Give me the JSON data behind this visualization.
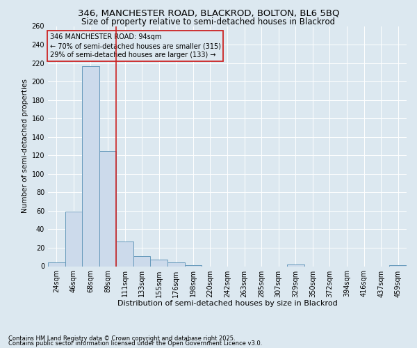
{
  "title1": "346, MANCHESTER ROAD, BLACKROD, BOLTON, BL6 5BQ",
  "title2": "Size of property relative to semi-detached houses in Blackrod",
  "xlabel": "Distribution of semi-detached houses by size in Blackrod",
  "ylabel": "Number of semi-detached properties",
  "categories": [
    "24sqm",
    "46sqm",
    "68sqm",
    "89sqm",
    "111sqm",
    "133sqm",
    "155sqm",
    "176sqm",
    "198sqm",
    "220sqm",
    "242sqm",
    "263sqm",
    "285sqm",
    "307sqm",
    "329sqm",
    "350sqm",
    "372sqm",
    "394sqm",
    "416sqm",
    "437sqm",
    "459sqm"
  ],
  "values": [
    4,
    59,
    217,
    125,
    27,
    11,
    7,
    4,
    1,
    0,
    0,
    0,
    0,
    0,
    2,
    0,
    0,
    0,
    0,
    0,
    1
  ],
  "bar_color": "#ccdaeb",
  "bar_edge_color": "#6699bb",
  "vline_color": "#cc2222",
  "vline_x_index": 3.5,
  "annotation_title": "346 MANCHESTER ROAD: 94sqm",
  "annotation_line1": "← 70% of semi-detached houses are smaller (315)",
  "annotation_line2": "29% of semi-detached houses are larger (133) →",
  "annotation_box_edge_color": "#cc2222",
  "ylim": [
    0,
    260
  ],
  "yticks": [
    0,
    20,
    40,
    60,
    80,
    100,
    120,
    140,
    160,
    180,
    200,
    220,
    240,
    260
  ],
  "bg_color": "#dce8f0",
  "footnote1": "Contains HM Land Registry data © Crown copyright and database right 2025.",
  "footnote2": "Contains public sector information licensed under the Open Government Licence v3.0.",
  "title1_fontsize": 9.5,
  "title2_fontsize": 8.5,
  "xlabel_fontsize": 8,
  "ylabel_fontsize": 7.5,
  "tick_fontsize": 7,
  "ann_fontsize": 7,
  "footnote_fontsize": 6
}
